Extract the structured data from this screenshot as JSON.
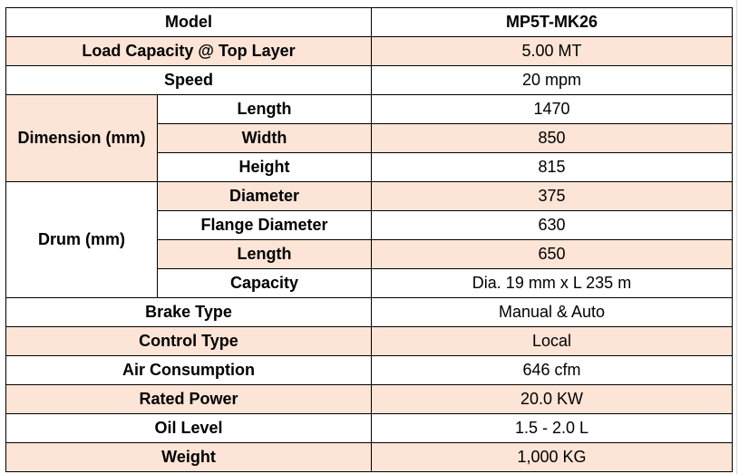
{
  "table": {
    "model": {
      "label": "Model",
      "value": "MP5T-MK26"
    },
    "load_capacity": {
      "label": "Load Capacity @ Top Layer",
      "value": "5.00 MT"
    },
    "speed": {
      "label": "Speed",
      "value": "20 mpm"
    },
    "dimension": {
      "group_label": "Dimension (mm)",
      "rows": [
        {
          "label": "Length",
          "value": "1470"
        },
        {
          "label": "Width",
          "value": "850"
        },
        {
          "label": "Height",
          "value": "815"
        }
      ]
    },
    "drum": {
      "group_label": "Drum (mm)",
      "rows": [
        {
          "label": "Diameter",
          "value": "375"
        },
        {
          "label": "Flange Diameter",
          "value": "630"
        },
        {
          "label": "Length",
          "value": "650"
        },
        {
          "label": "Capacity",
          "value": "Dia. 19 mm x L 235 m"
        }
      ]
    },
    "brake_type": {
      "label": "Brake Type",
      "value": "Manual & Auto"
    },
    "control_type": {
      "label": "Control Type",
      "value": "Local"
    },
    "air_consumption": {
      "label": "Air Consumption",
      "value": "646 cfm"
    },
    "rated_power": {
      "label": "Rated Power",
      "value": "20.0 KW"
    },
    "oil_level": {
      "label": "Oil Level",
      "value": "1.5 - 2.0 L"
    },
    "weight": {
      "label": "Weight",
      "value": "1,000 KG"
    }
  },
  "colors": {
    "shade": "#fce4d6",
    "border": "#000000",
    "gridline": "#d9d9d9"
  }
}
